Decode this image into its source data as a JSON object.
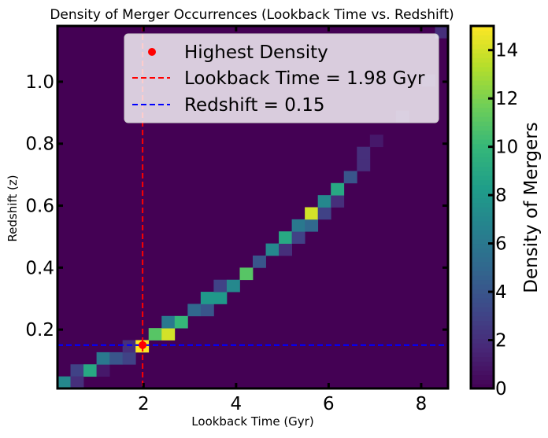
{
  "chart_data": {
    "type": "heatmap",
    "title": "Density of Merger Occurrences (Lookback Time vs. Redshift)",
    "xlabel": "Lookback Time (Gyr)",
    "ylabel": "Redshift (z)",
    "xlim": [
      0.14,
      8.58
    ],
    "ylim": [
      0.01,
      1.18
    ],
    "xticks": [
      2,
      4,
      6,
      8
    ],
    "xtick_labels": [
      "2",
      "4",
      "6",
      "8"
    ],
    "yticks": [
      0.2,
      0.4,
      0.6,
      0.8,
      1.0
    ],
    "ytick_labels": [
      "0.2",
      "0.4",
      "0.6",
      "0.8",
      "1.0"
    ],
    "bins": 30,
    "colorbar": {
      "label": "Density of Mergers",
      "range": [
        0,
        15
      ],
      "ticks": [
        0,
        2,
        4,
        6,
        8,
        10,
        12,
        14
      ],
      "tick_labels": [
        "0",
        "2",
        "4",
        "6",
        "8",
        "10",
        "12",
        "14"
      ]
    },
    "cells": [
      {
        "col": 0,
        "row": 0,
        "value": 7
      },
      {
        "col": 1,
        "row": 1,
        "value": 3
      },
      {
        "col": 1,
        "row": 0,
        "value": 2
      },
      {
        "col": 2,
        "row": 1,
        "value": 9
      },
      {
        "col": 3,
        "row": 1,
        "value": 1
      },
      {
        "col": 3,
        "row": 2,
        "value": 6
      },
      {
        "col": 4,
        "row": 2,
        "value": 4
      },
      {
        "col": 5,
        "row": 2,
        "value": 3
      },
      {
        "col": 5,
        "row": 3,
        "value": 2
      },
      {
        "col": 6,
        "row": 3,
        "value": 15
      },
      {
        "col": 7,
        "row": 4,
        "value": 11
      },
      {
        "col": 8,
        "row": 4,
        "value": 14
      },
      {
        "col": 8,
        "row": 5,
        "value": 6
      },
      {
        "col": 9,
        "row": 5,
        "value": 10
      },
      {
        "col": 10,
        "row": 6,
        "value": 5
      },
      {
        "col": 11,
        "row": 6,
        "value": 4
      },
      {
        "col": 11,
        "row": 7,
        "value": 8
      },
      {
        "col": 12,
        "row": 7,
        "value": 8
      },
      {
        "col": 12,
        "row": 8,
        "value": 3
      },
      {
        "col": 13,
        "row": 8,
        "value": 7
      },
      {
        "col": 14,
        "row": 9,
        "value": 11
      },
      {
        "col": 15,
        "row": 10,
        "value": 4
      },
      {
        "col": 16,
        "row": 11,
        "value": 7
      },
      {
        "col": 17,
        "row": 11,
        "value": 2
      },
      {
        "col": 17,
        "row": 12,
        "value": 9
      },
      {
        "col": 18,
        "row": 12,
        "value": 3
      },
      {
        "col": 18,
        "row": 13,
        "value": 6
      },
      {
        "col": 19,
        "row": 13,
        "value": 5
      },
      {
        "col": 19,
        "row": 14,
        "value": 14
      },
      {
        "col": 20,
        "row": 14,
        "value": 3
      },
      {
        "col": 20,
        "row": 15,
        "value": 7
      },
      {
        "col": 21,
        "row": 15,
        "value": 2
      },
      {
        "col": 21,
        "row": 16,
        "value": 9
      },
      {
        "col": 22,
        "row": 17,
        "value": 4
      },
      {
        "col": 23,
        "row": 18,
        "value": 2
      },
      {
        "col": 23,
        "row": 19,
        "value": 2
      },
      {
        "col": 24,
        "row": 20,
        "value": 1
      },
      {
        "col": 26,
        "row": 22,
        "value": 1
      },
      {
        "col": 28,
        "row": 25,
        "value": 1
      },
      {
        "col": 29,
        "row": 29,
        "value": 2
      }
    ],
    "legend": {
      "placement": "upper center",
      "entries": [
        {
          "label": "Highest Density",
          "marker": "dot",
          "color": "#ff0000"
        },
        {
          "label": "Lookback Time = 1.98 Gyr",
          "marker": "dashed-line",
          "color": "#ff0000"
        },
        {
          "label": "Redshift = 0.15",
          "marker": "dashed-line",
          "color": "#0000ff"
        }
      ]
    },
    "highest_density_point": {
      "x": 1.98,
      "y": 0.15,
      "color": "#ff0000"
    },
    "vline": {
      "x": 1.98,
      "color": "#ff0000",
      "style": "dashed"
    },
    "hline": {
      "y": 0.15,
      "color": "#0000ff",
      "style": "dashed"
    },
    "colormap": "viridis"
  }
}
